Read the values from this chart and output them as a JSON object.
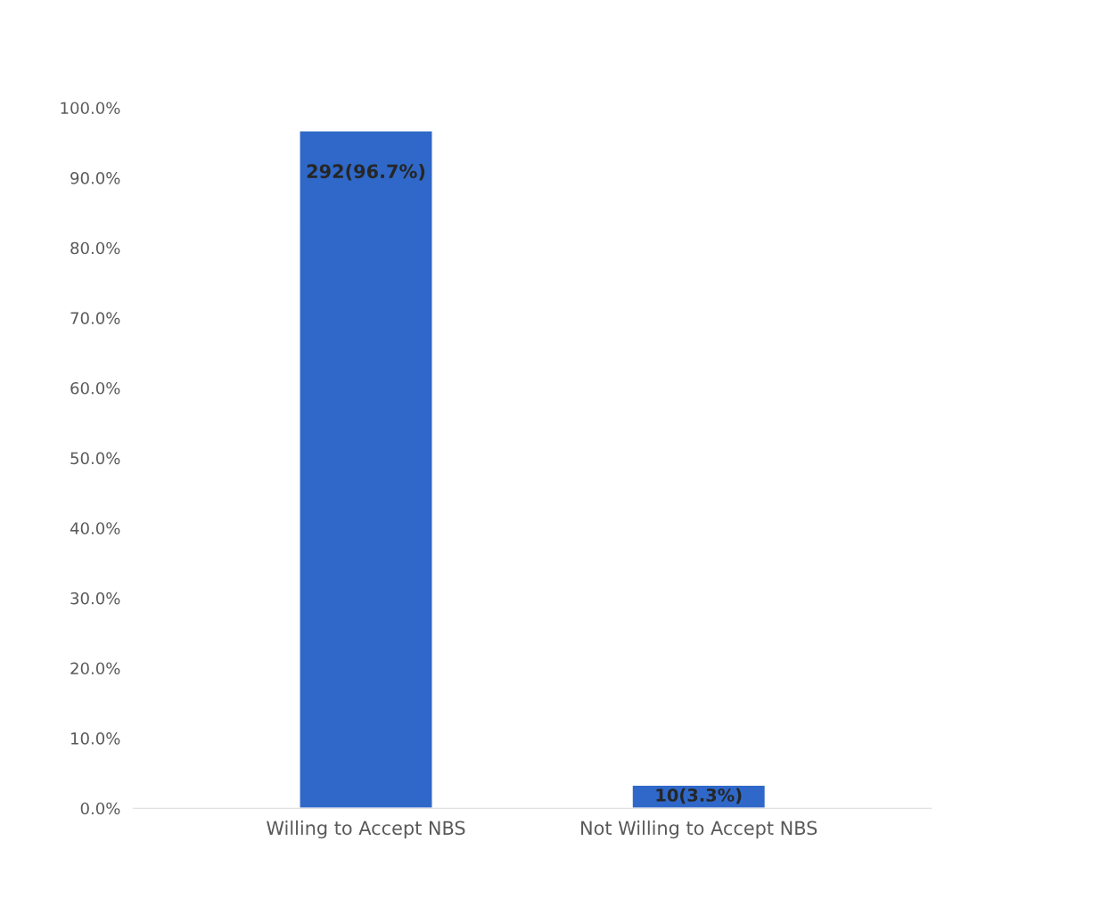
{
  "chart_data": {
    "type": "bar",
    "categories": [
      "Willing to Accept NBS",
      "Not Willing to Accept NBS"
    ],
    "values": [
      96.7,
      3.3
    ],
    "value_labels": [
      "292(96.7%)",
      "10(3.3%)"
    ],
    "color": "#2f68c8",
    "ylim": [
      0,
      100
    ],
    "yticks": [
      {
        "value": 0,
        "label": "0.0%"
      },
      {
        "value": 10,
        "label": "10.0%"
      },
      {
        "value": 20,
        "label": "20.0%"
      },
      {
        "value": 30,
        "label": "30.0%"
      },
      {
        "value": 40,
        "label": "40.0%"
      },
      {
        "value": 50,
        "label": "50.0%"
      },
      {
        "value": 60,
        "label": "60.0%"
      },
      {
        "value": 70,
        "label": "70.0%"
      },
      {
        "value": 80,
        "label": "80.0%"
      },
      {
        "value": 90,
        "label": "90.0%"
      },
      {
        "value": 100,
        "label": "100.0%"
      }
    ],
    "grid": false
  }
}
